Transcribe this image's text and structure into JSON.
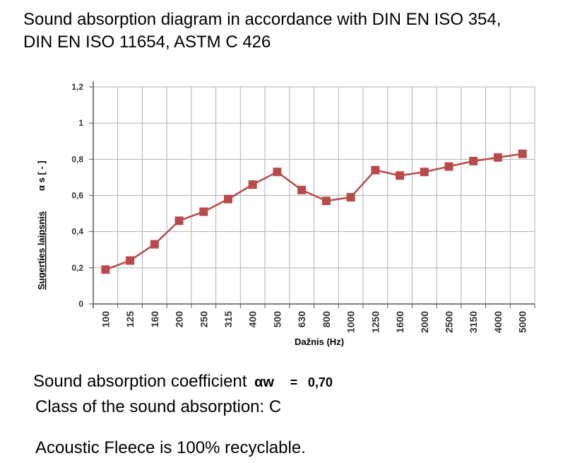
{
  "title": {
    "line1": "Sound absorption diagram in accordance with DIN EN ISO 354,",
    "line2": "DIN EN ISO 11654, ASTM C 426"
  },
  "chart_data": {
    "type": "line",
    "xlabel": "Dažnis (Hz)",
    "ylabel": "Sugerties laipsnis",
    "ylabel_unit": "α s [ - ]",
    "categories": [
      "100",
      "125",
      "160",
      "200",
      "250",
      "315",
      "400",
      "500",
      "630",
      "800",
      "1000",
      "1250",
      "1600",
      "2000",
      "2500",
      "3150",
      "4000",
      "5000"
    ],
    "series": [
      {
        "values": [
          0.19,
          0.24,
          0.33,
          0.46,
          0.51,
          0.58,
          0.66,
          0.73,
          0.63,
          0.57,
          0.59,
          0.74,
          0.71,
          0.73,
          0.76,
          0.79,
          0.81,
          0.83
        ]
      }
    ],
    "yticks": [
      "0",
      "0,2",
      "0,4",
      "0,6",
      "0,8",
      "1",
      "1,2"
    ],
    "ylim": [
      0,
      1.2
    ],
    "grid": true,
    "colors": {
      "series": "#b84a4a",
      "grid": "#b0b0b0",
      "axis": "#555555"
    }
  },
  "summary": {
    "coef_label": "Sound absorption coefficient",
    "coef_symbol": "αw",
    "coef_eq": "=",
    "coef_value": "0,70",
    "class_text": "Class of the sound absorption: C",
    "recyclable_text": "Acoustic Fleece is 100% recyclable."
  }
}
